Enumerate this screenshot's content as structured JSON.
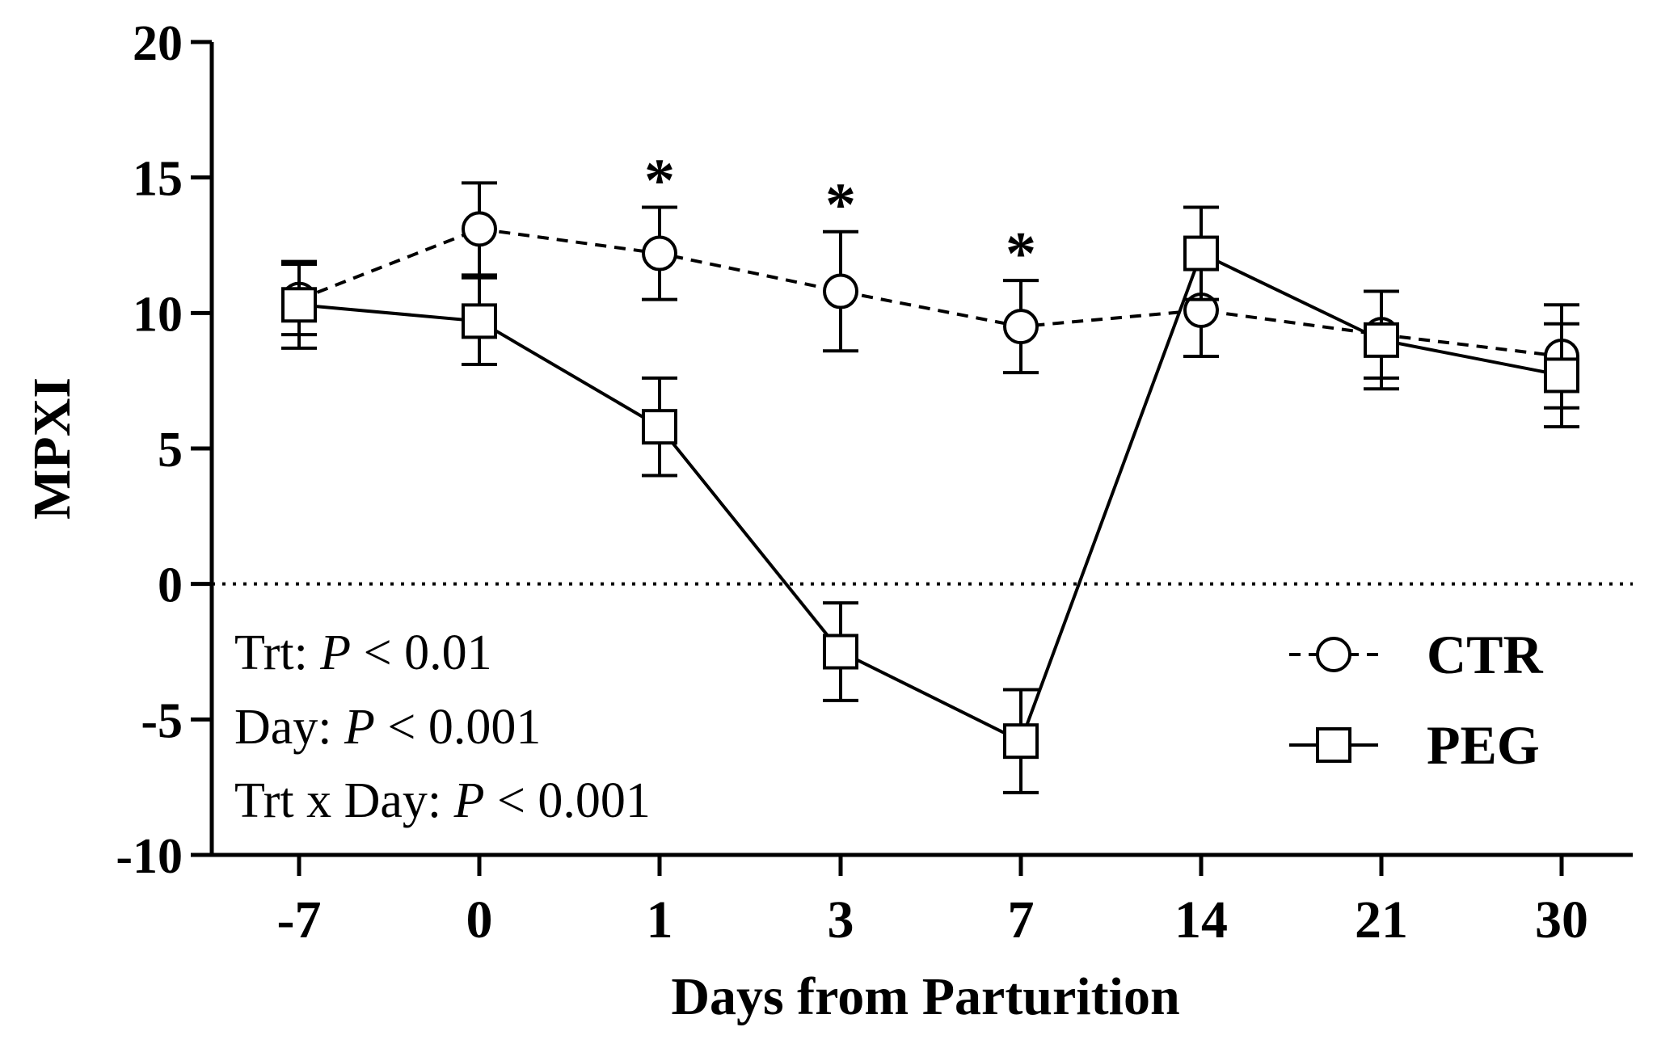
{
  "chart_data": {
    "type": "line",
    "x_categories": [
      "-7",
      "0",
      "1",
      "3",
      "7",
      "14",
      "21",
      "30"
    ],
    "xlabel": "Days from Parturition",
    "ylabel": "MPXI",
    "ylim": [
      -10,
      20
    ],
    "yticks": [
      "20",
      "15",
      "10",
      "5",
      "0",
      "-5",
      "-10"
    ],
    "ytick_values": [
      20,
      15,
      10,
      5,
      0,
      -5,
      -10
    ],
    "reference_line": {
      "y": 0,
      "style": "dotted"
    },
    "series": [
      {
        "name": "CTR",
        "marker": "circle",
        "line_style": "dashed",
        "values": [
          10.5,
          13.1,
          12.2,
          10.8,
          9.5,
          10.1,
          9.2,
          8.4
        ],
        "error": [
          1.3,
          1.7,
          1.7,
          2.2,
          1.7,
          1.7,
          1.6,
          1.9
        ]
      },
      {
        "name": "PEG",
        "marker": "square",
        "line_style": "solid",
        "values": [
          10.3,
          9.7,
          5.8,
          -2.5,
          -5.8,
          12.2,
          9.0,
          7.7
        ],
        "error": [
          1.6,
          1.6,
          1.8,
          1.8,
          1.9,
          1.7,
          1.8,
          1.9
        ]
      }
    ],
    "significance_markers": [
      {
        "x": "1",
        "label": "*"
      },
      {
        "x": "3",
        "label": "*"
      },
      {
        "x": "7",
        "label": "*"
      }
    ],
    "stats": {
      "trt": {
        "prefix": "Trt: ",
        "p": "P",
        "rest": " < 0.01"
      },
      "day": {
        "prefix": "Day: ",
        "p": "P",
        "rest": " < 0.001"
      },
      "trt_day": {
        "prefix": "Trt x Day: ",
        "p": "P",
        "rest": " < 0.001"
      }
    },
    "legend": {
      "position": "bottom-right",
      "entries": [
        "CTR",
        "PEG"
      ]
    }
  }
}
